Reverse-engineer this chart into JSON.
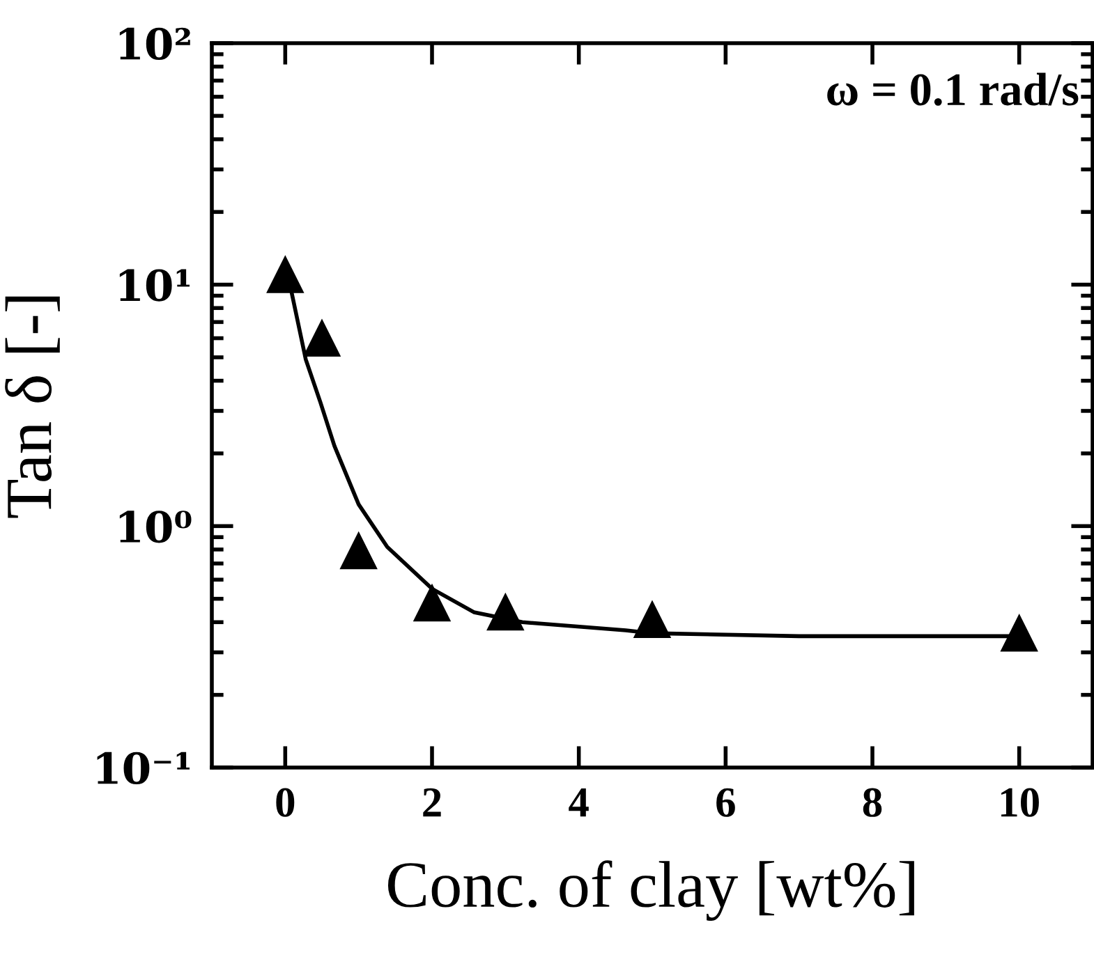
{
  "chart_data": {
    "type": "scatter",
    "xlabel": "Conc. of clay [wt%]",
    "ylabel": "Tan δ [-]",
    "annotations": [
      "ω = 0.1 rad/s"
    ],
    "log": "y",
    "grid": false,
    "xlim": [
      -1,
      11
    ],
    "xticks": [
      0,
      2,
      4,
      6,
      8,
      10
    ],
    "ylim": [
      0.1,
      100
    ],
    "yticks": [
      {
        "value": 0.1,
        "label": "10⁻¹"
      },
      {
        "value": 1,
        "label": "10⁰"
      },
      {
        "value": 10,
        "label": "10¹"
      },
      {
        "value": 100,
        "label": "10²"
      }
    ],
    "series": [
      {
        "marker": "triangle",
        "color": "#000000",
        "x": [
          0,
          0.5,
          1,
          2,
          3,
          5,
          10
        ],
        "values": [
          11,
          6.0,
          0.79,
          0.48,
          0.44,
          0.41,
          0.36
        ]
      },
      {
        "type": "line",
        "marker": "none",
        "line_style": "solid",
        "color": "#000000",
        "x": [
          0,
          0.08,
          0.28,
          0.48,
          0.67,
          1.0,
          1.39,
          2.0,
          2.57,
          3.23,
          4.64,
          5.0,
          7.0,
          10.0
        ],
        "values": [
          10.5,
          9.5,
          4.9,
          3.25,
          2.15,
          1.23,
          0.82,
          0.55,
          0.44,
          0.4,
          0.37,
          0.36,
          0.35,
          0.35
        ]
      }
    ]
  }
}
